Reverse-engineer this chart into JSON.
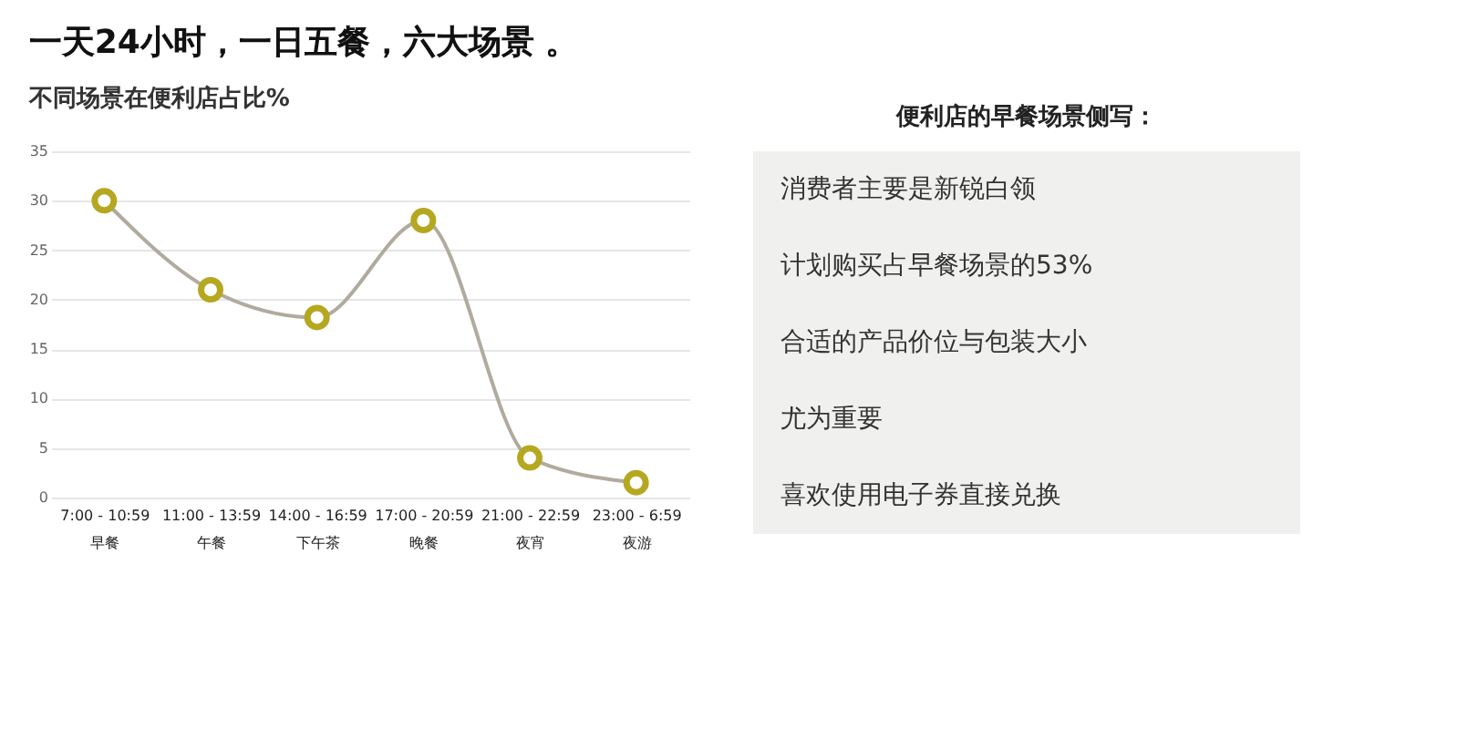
{
  "chart_data": [
    {
      "type": "line",
      "title": "一天24小时，一日五餐，六大场景 。",
      "subtitle": "不同场景在便利店占比%",
      "categories": [
        "7:00 - 10:59\n早餐",
        "11:00 - 13:59\n午餐",
        "14:00 - 16:59\n下午茶",
        "17:00 - 20:59\n晚餐",
        "21:00 - 22:59\n夜宵",
        "23:00 - 6:59\n夜游"
      ],
      "series": [
        {
          "color": "#b0ab9e",
          "marker": "none",
          "values": [
            30,
            21,
            18.2,
            28,
            4,
            1.5
          ]
        },
        {
          "type": "scatter",
          "color": "#b5a820",
          "marker": "circle",
          "values": [
            30,
            21,
            18.2,
            28,
            4,
            1.5
          ]
        }
      ],
      "line_style": "solid",
      "ylim": [
        0,
        35
      ],
      "yticks": [
        0,
        5,
        10,
        15,
        20,
        25,
        30,
        35
      ],
      "grid": "y",
      "legend": false
    },
    {
      "type": "other",
      "title": "便利店的早餐场景侧写：",
      "annotations": [
        "消费者主要是新锐白领",
        "计划购买占早餐场景的53%",
        "合适的产品价位与包装大小",
        "尤为重要",
        "喜欢使用电子券直接兑换"
      ]
    }
  ]
}
